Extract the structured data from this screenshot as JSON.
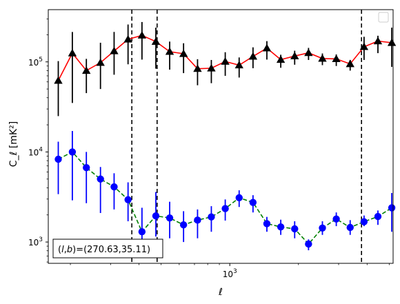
{
  "chart_data": {
    "type": "scatter",
    "title": "",
    "xlabel": "ℓ",
    "ylabel": "C_ℓ  [mK²]",
    "xscale": "log",
    "yscale": "log",
    "xlim": [
      160,
      5200
    ],
    "ylim": [
      580,
      380000
    ],
    "x_tick_labels": [
      {
        "value": 1000,
        "label": "10",
        "exp": "3"
      }
    ],
    "y_tick_labels": [
      {
        "value": 1000,
        "label": "10",
        "exp": "3"
      },
      {
        "value": 10000,
        "label": "10",
        "exp": "4"
      },
      {
        "value": 100000,
        "label": "10",
        "exp": "5"
      }
    ],
    "vlines": [
      372,
      480,
      3780
    ],
    "legend": {
      "placement": "upper-right",
      "entries": []
    },
    "annotation": {
      "prefix": "(",
      "l": "l",
      "comma": ",",
      "b": "b",
      "suffix": ")=(270.63,35.11)"
    },
    "x": [
      177,
      204,
      235,
      271,
      311,
      358,
      412,
      474,
      545,
      627,
      722,
      830,
      955,
      1099,
      1264,
      1454,
      1673,
      1925,
      2214,
      2547,
      2930,
      3371,
      3878,
      4461,
      5132
    ],
    "series": [
      {
        "style": "red-line-black-triangles",
        "line_color": "#ff0000",
        "marker_color": "#000000",
        "marker": "triangle",
        "values": [
          62000,
          125000,
          80000,
          98000,
          132000,
          178000,
          197000,
          168000,
          130000,
          123000,
          84000,
          85000,
          101000,
          92000,
          115000,
          142000,
          106000,
          116000,
          126000,
          109000,
          108000,
          95000,
          147000,
          170000,
          163000
        ],
        "err_lo": [
          37000,
          90000,
          35000,
          48000,
          60000,
          84000,
          91000,
          84000,
          48000,
          48000,
          29000,
          27000,
          31000,
          25000,
          30000,
          36000,
          20000,
          23000,
          21000,
          17000,
          18000,
          15000,
          42000,
          45000,
          75000
        ],
        "err_hi": [
          40000,
          90000,
          28000,
          65000,
          83000,
          82000,
          80000,
          72000,
          38000,
          38000,
          23000,
          20000,
          27000,
          20000,
          30000,
          28000,
          14000,
          17000,
          17000,
          15000,
          13000,
          10000,
          43000,
          25000,
          77000
        ]
      },
      {
        "style": "green-dashed-blue-circles",
        "line_color": "#008000",
        "marker_color": "#0000ff",
        "marker": "circle",
        "values": [
          8300,
          10000,
          6700,
          5000,
          4100,
          2950,
          1300,
          1950,
          1850,
          1550,
          1750,
          1900,
          2350,
          3100,
          2750,
          1600,
          1470,
          1400,
          950,
          1430,
          1800,
          1450,
          1680,
          1920,
          2400
        ],
        "err_lo": [
          4900,
          7100,
          4000,
          2900,
          1800,
          1250,
          600,
          800,
          750,
          550,
          650,
          600,
          620,
          650,
          620,
          300,
          270,
          300,
          140,
          230,
          300,
          250,
          180,
          370,
          1100
        ],
        "err_hi": [
          4700,
          7100,
          3300,
          1800,
          1700,
          1650,
          1100,
          1650,
          950,
          650,
          550,
          600,
          620,
          650,
          560,
          300,
          300,
          300,
          120,
          270,
          330,
          300,
          290,
          320,
          1100
        ]
      }
    ]
  }
}
